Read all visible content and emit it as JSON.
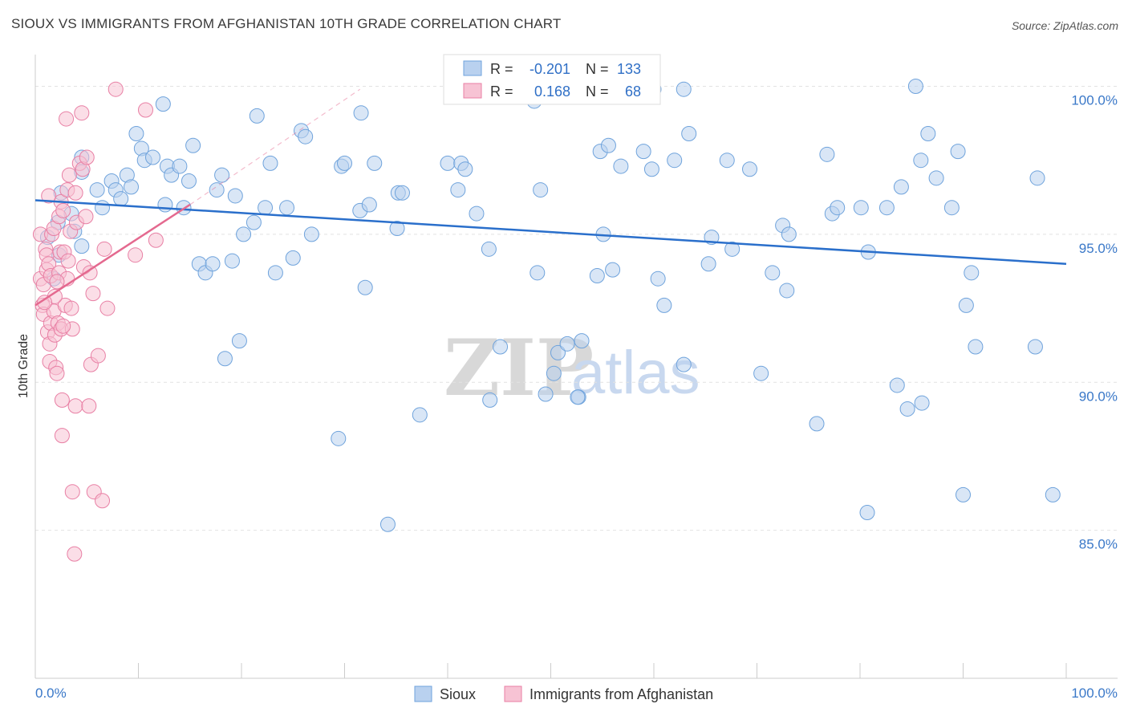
{
  "title": "SIOUX VS IMMIGRANTS FROM AFGHANISTAN 10TH GRADE CORRELATION CHART",
  "source": "Source: ZipAtlas.com",
  "watermark": {
    "zip": "ZIP",
    "atlas": "atlas"
  },
  "colors": {
    "sioux": "#6fa3dc",
    "sioux_fill": "#b9d1ef",
    "afghan": "#e87fa4",
    "afghan_fill": "#f7c3d4",
    "sioux_line": "#2a6fcb",
    "afghan_line": "#e4698f",
    "tick_label": "#3a78c8"
  },
  "stats": {
    "r_label": "R =",
    "n_label": "N =",
    "sioux": {
      "r": "-0.201",
      "n": "133"
    },
    "afghan": {
      "r": "0.168",
      "n": "68"
    }
  },
  "legend": {
    "sioux": "Sioux",
    "afghan": "Immigrants from Afghanistan"
  },
  "chart_data": {
    "type": "scatter",
    "title": "SIOUX VS IMMIGRANTS FROM AFGHANISTAN 10TH GRADE CORRELATION CHART",
    "xlabel": "",
    "ylabel": "10th Grade",
    "xlim": [
      0,
      100
    ],
    "ylim": [
      80.0,
      100.8
    ],
    "x_tick_labels": [
      "0.0%",
      "100.0%"
    ],
    "y_ticks": [
      85.0,
      90.0,
      95.0,
      100.0
    ],
    "y_tick_labels": [
      "85.0%",
      "90.0%",
      "95.0%",
      "100.0%"
    ],
    "grid": "horizontal dashed",
    "legend_position": "bottom-center",
    "series": [
      {
        "name": "Sioux",
        "trend": {
          "x": [
            0,
            100
          ],
          "y": [
            96.15,
            94.0
          ]
        },
        "points": [
          [
            1.2,
            94.9
          ],
          [
            1.8,
            93.5
          ],
          [
            2.2,
            95.4
          ],
          [
            2.3,
            94.3
          ],
          [
            2.5,
            96.4
          ],
          [
            3.5,
            95.7
          ],
          [
            3.8,
            95.1
          ],
          [
            4.5,
            94.6
          ],
          [
            4.5,
            97.6
          ],
          [
            4.5,
            97.1
          ],
          [
            6.0,
            96.5
          ],
          [
            6.5,
            95.9
          ],
          [
            7.4,
            96.8
          ],
          [
            7.8,
            96.5
          ],
          [
            8.3,
            96.2
          ],
          [
            8.9,
            97.0
          ],
          [
            9.3,
            96.6
          ],
          [
            9.8,
            98.4
          ],
          [
            10.3,
            97.9
          ],
          [
            10.6,
            97.5
          ],
          [
            11.4,
            97.6
          ],
          [
            12.4,
            99.4
          ],
          [
            12.6,
            96.0
          ],
          [
            12.8,
            97.3
          ],
          [
            13.2,
            97.0
          ],
          [
            14.0,
            97.3
          ],
          [
            14.4,
            95.9
          ],
          [
            14.9,
            96.8
          ],
          [
            15.3,
            98.0
          ],
          [
            15.9,
            94.0
          ],
          [
            16.5,
            93.7
          ],
          [
            17.2,
            94.0
          ],
          [
            17.6,
            96.5
          ],
          [
            18.1,
            97.0
          ],
          [
            18.4,
            90.8
          ],
          [
            19.1,
            94.1
          ],
          [
            19.4,
            96.3
          ],
          [
            19.8,
            91.4
          ],
          [
            20.2,
            95.0
          ],
          [
            21.2,
            95.4
          ],
          [
            21.5,
            99.0
          ],
          [
            22.3,
            95.9
          ],
          [
            22.8,
            97.4
          ],
          [
            23.3,
            93.7
          ],
          [
            24.4,
            95.9
          ],
          [
            25.0,
            94.2
          ],
          [
            25.8,
            98.5
          ],
          [
            26.2,
            98.3
          ],
          [
            26.8,
            95.0
          ],
          [
            29.4,
            88.1
          ],
          [
            29.7,
            97.3
          ],
          [
            30.0,
            97.4
          ],
          [
            31.5,
            95.8
          ],
          [
            31.6,
            99.1
          ],
          [
            32.0,
            93.2
          ],
          [
            32.4,
            96.0
          ],
          [
            32.9,
            97.4
          ],
          [
            34.2,
            85.2
          ],
          [
            35.1,
            95.2
          ],
          [
            35.2,
            96.4
          ],
          [
            35.6,
            96.4
          ],
          [
            37.3,
            88.9
          ],
          [
            40.0,
            97.4
          ],
          [
            41.0,
            96.5
          ],
          [
            41.3,
            97.4
          ],
          [
            41.7,
            97.2
          ],
          [
            42.8,
            95.7
          ],
          [
            44.0,
            94.5
          ],
          [
            45.1,
            91.2
          ],
          [
            44.1,
            89.4
          ],
          [
            48.4,
            99.5
          ],
          [
            49.0,
            96.5
          ],
          [
            47.7,
            99.9
          ],
          [
            47.9,
            99.9
          ],
          [
            48.7,
            93.7
          ],
          [
            49.5,
            89.6
          ],
          [
            50.3,
            90.3
          ],
          [
            50.7,
            91.0
          ],
          [
            51.6,
            91.3
          ],
          [
            52.7,
            89.5
          ],
          [
            52.6,
            89.5
          ],
          [
            52.3,
            100.0
          ],
          [
            53.0,
            91.4
          ],
          [
            54.5,
            93.6
          ],
          [
            54.8,
            97.8
          ],
          [
            55.1,
            95.0
          ],
          [
            55.6,
            98.0
          ],
          [
            56.0,
            93.8
          ],
          [
            56.8,
            97.3
          ],
          [
            59.0,
            97.8
          ],
          [
            59.8,
            97.2
          ],
          [
            60.4,
            93.5
          ],
          [
            60.0,
            99.9
          ],
          [
            61.0,
            92.6
          ],
          [
            62.0,
            97.5
          ],
          [
            62.9,
            90.6
          ],
          [
            62.9,
            99.9
          ],
          [
            63.4,
            98.4
          ],
          [
            65.3,
            94.0
          ],
          [
            65.6,
            94.9
          ],
          [
            67.1,
            97.5
          ],
          [
            67.6,
            94.5
          ],
          [
            69.3,
            97.2
          ],
          [
            70.4,
            90.3
          ],
          [
            71.5,
            93.7
          ],
          [
            72.5,
            95.3
          ],
          [
            72.9,
            93.1
          ],
          [
            73.1,
            95.0
          ],
          [
            75.8,
            88.6
          ],
          [
            76.8,
            97.7
          ],
          [
            77.3,
            95.7
          ],
          [
            77.8,
            95.9
          ],
          [
            80.1,
            95.9
          ],
          [
            80.7,
            85.6
          ],
          [
            80.8,
            94.4
          ],
          [
            82.6,
            95.9
          ],
          [
            83.6,
            89.9
          ],
          [
            84.0,
            96.6
          ],
          [
            84.6,
            89.1
          ],
          [
            85.4,
            100.0
          ],
          [
            85.9,
            97.5
          ],
          [
            86.0,
            89.3
          ],
          [
            86.6,
            98.4
          ],
          [
            87.4,
            96.9
          ],
          [
            88.9,
            95.9
          ],
          [
            89.5,
            97.8
          ],
          [
            90.0,
            86.2
          ],
          [
            90.3,
            92.6
          ],
          [
            90.8,
            93.7
          ],
          [
            91.2,
            91.2
          ],
          [
            97.0,
            91.2
          ],
          [
            97.2,
            96.9
          ],
          [
            98.7,
            86.2
          ]
        ]
      },
      {
        "name": "Immigrants from Afghanistan",
        "trend": {
          "x": [
            0,
            15
          ],
          "y": [
            92.6,
            96.0
          ]
        },
        "trend_extension": {
          "x": [
            15,
            31.5
          ],
          "y": [
            96.0,
            99.9
          ]
        },
        "points": [
          [
            0.5,
            95.0
          ],
          [
            0.5,
            93.5
          ],
          [
            0.7,
            92.6
          ],
          [
            0.8,
            92.3
          ],
          [
            0.8,
            93.3
          ],
          [
            1.0,
            94.5
          ],
          [
            1.1,
            94.3
          ],
          [
            1.1,
            93.8
          ],
          [
            1.2,
            91.7
          ],
          [
            1.3,
            94.0
          ],
          [
            1.4,
            90.7
          ],
          [
            1.4,
            91.3
          ],
          [
            1.5,
            93.6
          ],
          [
            1.5,
            92.0
          ],
          [
            1.6,
            95.0
          ],
          [
            1.8,
            95.2
          ],
          [
            1.8,
            92.4
          ],
          [
            1.9,
            91.6
          ],
          [
            2.0,
            90.5
          ],
          [
            2.1,
            90.3
          ],
          [
            2.2,
            92.0
          ],
          [
            2.3,
            93.7
          ],
          [
            2.3,
            95.6
          ],
          [
            2.4,
            94.4
          ],
          [
            2.5,
            91.8
          ],
          [
            2.5,
            96.1
          ],
          [
            2.6,
            89.4
          ],
          [
            2.6,
            88.2
          ],
          [
            2.7,
            95.8
          ],
          [
            2.8,
            94.4
          ],
          [
            2.9,
            92.6
          ],
          [
            3.0,
            98.9
          ],
          [
            3.1,
            96.5
          ],
          [
            3.1,
            93.5
          ],
          [
            3.3,
            97.0
          ],
          [
            3.4,
            95.1
          ],
          [
            3.5,
            92.5
          ],
          [
            3.6,
            91.8
          ],
          [
            3.6,
            86.3
          ],
          [
            3.8,
            84.2
          ],
          [
            3.9,
            89.2
          ],
          [
            3.9,
            96.4
          ],
          [
            4.0,
            95.4
          ],
          [
            4.3,
            97.4
          ],
          [
            4.5,
            99.1
          ],
          [
            4.6,
            97.2
          ],
          [
            4.7,
            93.9
          ],
          [
            4.9,
            95.6
          ],
          [
            5.0,
            97.6
          ],
          [
            5.2,
            89.2
          ],
          [
            5.3,
            93.7
          ],
          [
            5.4,
            90.6
          ],
          [
            5.6,
            93.0
          ],
          [
            5.7,
            86.3
          ],
          [
            6.1,
            90.9
          ],
          [
            6.5,
            86.0
          ],
          [
            6.7,
            94.5
          ],
          [
            7.0,
            92.5
          ],
          [
            7.8,
            99.9
          ],
          [
            9.7,
            94.3
          ],
          [
            10.7,
            99.2
          ],
          [
            11.7,
            94.8
          ],
          [
            3.2,
            94.1
          ],
          [
            1.9,
            92.9
          ],
          [
            2.1,
            93.4
          ],
          [
            0.9,
            92.7
          ],
          [
            1.3,
            96.3
          ],
          [
            2.7,
            91.9
          ]
        ]
      }
    ]
  }
}
